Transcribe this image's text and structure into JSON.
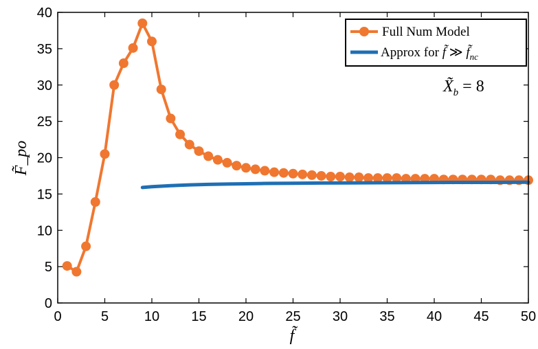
{
  "chart_data": {
    "type": "line",
    "title": "",
    "xlabel": "f̃",
    "ylabel": "F̃_po",
    "xlim": [
      0,
      50
    ],
    "ylim": [
      0,
      40
    ],
    "xticks": [
      0,
      5,
      10,
      15,
      20,
      25,
      30,
      35,
      40,
      45,
      50
    ],
    "yticks": [
      0,
      5,
      10,
      15,
      20,
      25,
      30,
      35,
      40
    ],
    "grid": false,
    "legend_position": "top-right",
    "annotation": {
      "lhs": "X̃",
      "sub": "b",
      "rhs": " = 8"
    },
    "series": [
      {
        "name": "Full Num Model",
        "color": "#F07730",
        "marker": "circle",
        "x": [
          1,
          2,
          3,
          4,
          5,
          6,
          7,
          8,
          9,
          10,
          11,
          12,
          13,
          14,
          15,
          16,
          17,
          18,
          19,
          20,
          21,
          22,
          23,
          24,
          25,
          26,
          27,
          28,
          29,
          30,
          31,
          32,
          33,
          34,
          35,
          36,
          37,
          38,
          39,
          40,
          41,
          42,
          43,
          44,
          45,
          46,
          47,
          48,
          49,
          50
        ],
        "y": [
          5.1,
          4.3,
          7.8,
          13.9,
          20.5,
          30.0,
          33.0,
          35.1,
          38.5,
          36.0,
          29.4,
          25.4,
          23.2,
          21.8,
          20.9,
          20.2,
          19.7,
          19.3,
          18.9,
          18.6,
          18.4,
          18.2,
          18.0,
          17.9,
          17.8,
          17.7,
          17.6,
          17.5,
          17.4,
          17.4,
          17.3,
          17.3,
          17.2,
          17.2,
          17.2,
          17.2,
          17.1,
          17.1,
          17.1,
          17.1,
          17.0,
          17.0,
          17.0,
          17.0,
          17.0,
          17.0,
          16.9,
          16.9,
          16.9,
          16.9
        ]
      },
      {
        "name_main": "Approx for ",
        "name_lhs": "f̃",
        "name_op": " ≫ ",
        "name_rhs": "f̃",
        "name_rhs_sub": "nc",
        "color": "#1F6FB4",
        "marker": "none",
        "x": [
          9,
          10,
          12,
          14,
          16,
          18,
          20,
          22,
          25,
          28,
          31,
          34,
          38,
          42,
          46,
          50
        ],
        "y": [
          15.9,
          16.0,
          16.15,
          16.25,
          16.32,
          16.37,
          16.41,
          16.45,
          16.48,
          16.51,
          16.53,
          16.55,
          16.57,
          16.59,
          16.6,
          16.62
        ]
      }
    ]
  }
}
